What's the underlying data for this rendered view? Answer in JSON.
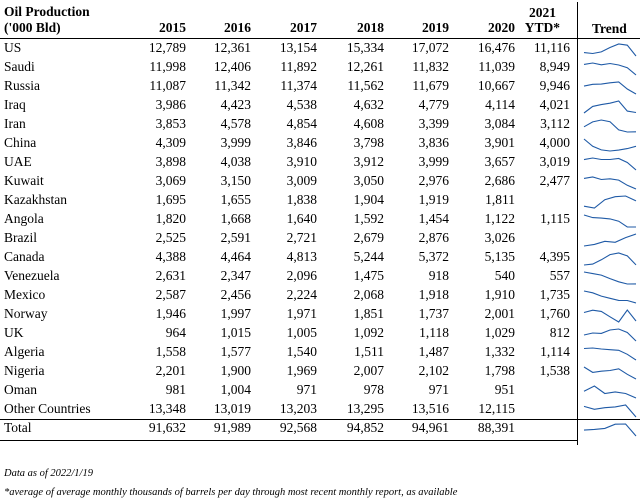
{
  "table": {
    "title_line1": "Oil Production",
    "title_line2": "('000 Bld)",
    "years": [
      "2015",
      "2016",
      "2017",
      "2018",
      "2019",
      "2020"
    ],
    "ytd_year": "2021",
    "ytd_label": "YTD*",
    "trend_label": "Trend",
    "rows": [
      {
        "name": "US",
        "values": [
          "12,789",
          "12,361",
          "13,154",
          "15,334",
          "17,072",
          "16,476"
        ],
        "ytd": "11,116"
      },
      {
        "name": "Saudi",
        "values": [
          "11,998",
          "12,406",
          "11,892",
          "12,261",
          "11,832",
          "11,039"
        ],
        "ytd": "8,949"
      },
      {
        "name": "Russia",
        "values": [
          "11,087",
          "11,342",
          "11,374",
          "11,562",
          "11,679",
          "10,667"
        ],
        "ytd": "9,946"
      },
      {
        "name": "Iraq",
        "values": [
          "3,986",
          "4,423",
          "4,538",
          "4,632",
          "4,779",
          "4,114"
        ],
        "ytd": "4,021"
      },
      {
        "name": "Iran",
        "values": [
          "3,853",
          "4,578",
          "4,854",
          "4,608",
          "3,399",
          "3,084"
        ],
        "ytd": "3,112"
      },
      {
        "name": "China",
        "values": [
          "4,309",
          "3,999",
          "3,846",
          "3,798",
          "3,836",
          "3,901"
        ],
        "ytd": "4,000"
      },
      {
        "name": "UAE",
        "values": [
          "3,898",
          "4,038",
          "3,910",
          "3,912",
          "3,999",
          "3,657"
        ],
        "ytd": "3,019"
      },
      {
        "name": "Kuwait",
        "values": [
          "3,069",
          "3,150",
          "3,009",
          "3,050",
          "2,976",
          "2,686"
        ],
        "ytd": "2,477"
      },
      {
        "name": "Kazakhstan",
        "values": [
          "1,695",
          "1,655",
          "1,838",
          "1,904",
          "1,919",
          "1,811"
        ],
        "ytd": ""
      },
      {
        "name": "Angola",
        "values": [
          "1,820",
          "1,668",
          "1,640",
          "1,592",
          "1,454",
          "1,122"
        ],
        "ytd": "1,115"
      },
      {
        "name": "Brazil",
        "values": [
          "2,525",
          "2,591",
          "2,721",
          "2,679",
          "2,876",
          "3,026"
        ],
        "ytd": ""
      },
      {
        "name": "Canada",
        "values": [
          "4,388",
          "4,464",
          "4,813",
          "5,244",
          "5,372",
          "5,135"
        ],
        "ytd": "4,395"
      },
      {
        "name": "Venezuela",
        "values": [
          "2,631",
          "2,347",
          "2,096",
          "1,475",
          "918",
          "540"
        ],
        "ytd": "557"
      },
      {
        "name": "Mexico",
        "values": [
          "2,587",
          "2,456",
          "2,224",
          "2,068",
          "1,918",
          "1,910"
        ],
        "ytd": "1,735"
      },
      {
        "name": "Norway",
        "values": [
          "1,946",
          "1,997",
          "1,971",
          "1,851",
          "1,737",
          "2,001"
        ],
        "ytd": "1,760"
      },
      {
        "name": "UK",
        "values": [
          "964",
          "1,015",
          "1,005",
          "1,092",
          "1,118",
          "1,029"
        ],
        "ytd": "812"
      },
      {
        "name": "Algeria",
        "values": [
          "1,558",
          "1,577",
          "1,540",
          "1,511",
          "1,487",
          "1,332"
        ],
        "ytd": "1,114"
      },
      {
        "name": "Nigeria",
        "values": [
          "2,201",
          "1,900",
          "1,969",
          "2,007",
          "2,102",
          "1,798"
        ],
        "ytd": "1,538"
      },
      {
        "name": "Oman",
        "values": [
          "981",
          "1,004",
          "971",
          "978",
          "971",
          "951"
        ],
        "ytd": ""
      },
      {
        "name": "Other Countries",
        "values": [
          "13,348",
          "13,019",
          "13,203",
          "13,295",
          "13,516",
          "12,115"
        ],
        "ytd": ""
      }
    ],
    "total": {
      "name": "Total",
      "values": [
        "91,632",
        "91,989",
        "92,568",
        "94,852",
        "94,961",
        "88,391"
      ],
      "ytd": ""
    }
  },
  "notes": {
    "data_as_of": "Data as of 2022/1/19",
    "footnote": "*average of average monthly thousands of barrels per day through most recent monthly report, as available"
  },
  "colors": {
    "sparkline": "#1f5aa6"
  }
}
